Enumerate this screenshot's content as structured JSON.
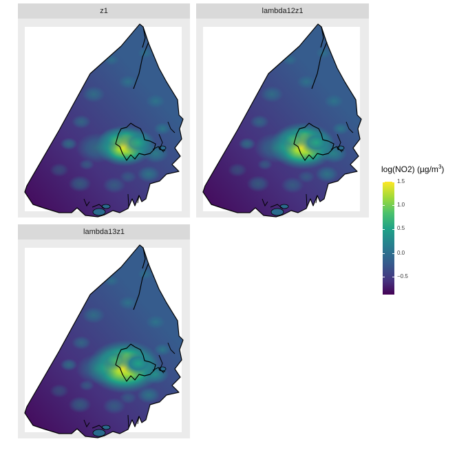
{
  "panels": [
    {
      "id": "p1",
      "label": "z1",
      "intensity": 1.0
    },
    {
      "id": "p2",
      "label": "lambda12z1",
      "intensity": 1.15
    },
    {
      "id": "p3",
      "label": "lambda13z1",
      "intensity": 1.3
    }
  ],
  "legend": {
    "title": "log(NO2) (µg/m",
    "title_sup": "3",
    "title_close": ")",
    "ticks": [
      "1.5",
      "1.0",
      "0.5",
      "0.0",
      "−0.5"
    ],
    "tick_values": [
      1.5,
      1.0,
      0.5,
      0.0,
      -0.5
    ],
    "range": [
      -0.8,
      1.5
    ],
    "palette": [
      "#440154",
      "#46327e",
      "#365c8d",
      "#277f8e",
      "#1fa187",
      "#4ac16d",
      "#a0da39",
      "#fde725"
    ]
  },
  "colors": {
    "strip": "#d9d9d9",
    "panel_bg": "#ebebeb",
    "outline": "#000000"
  }
}
